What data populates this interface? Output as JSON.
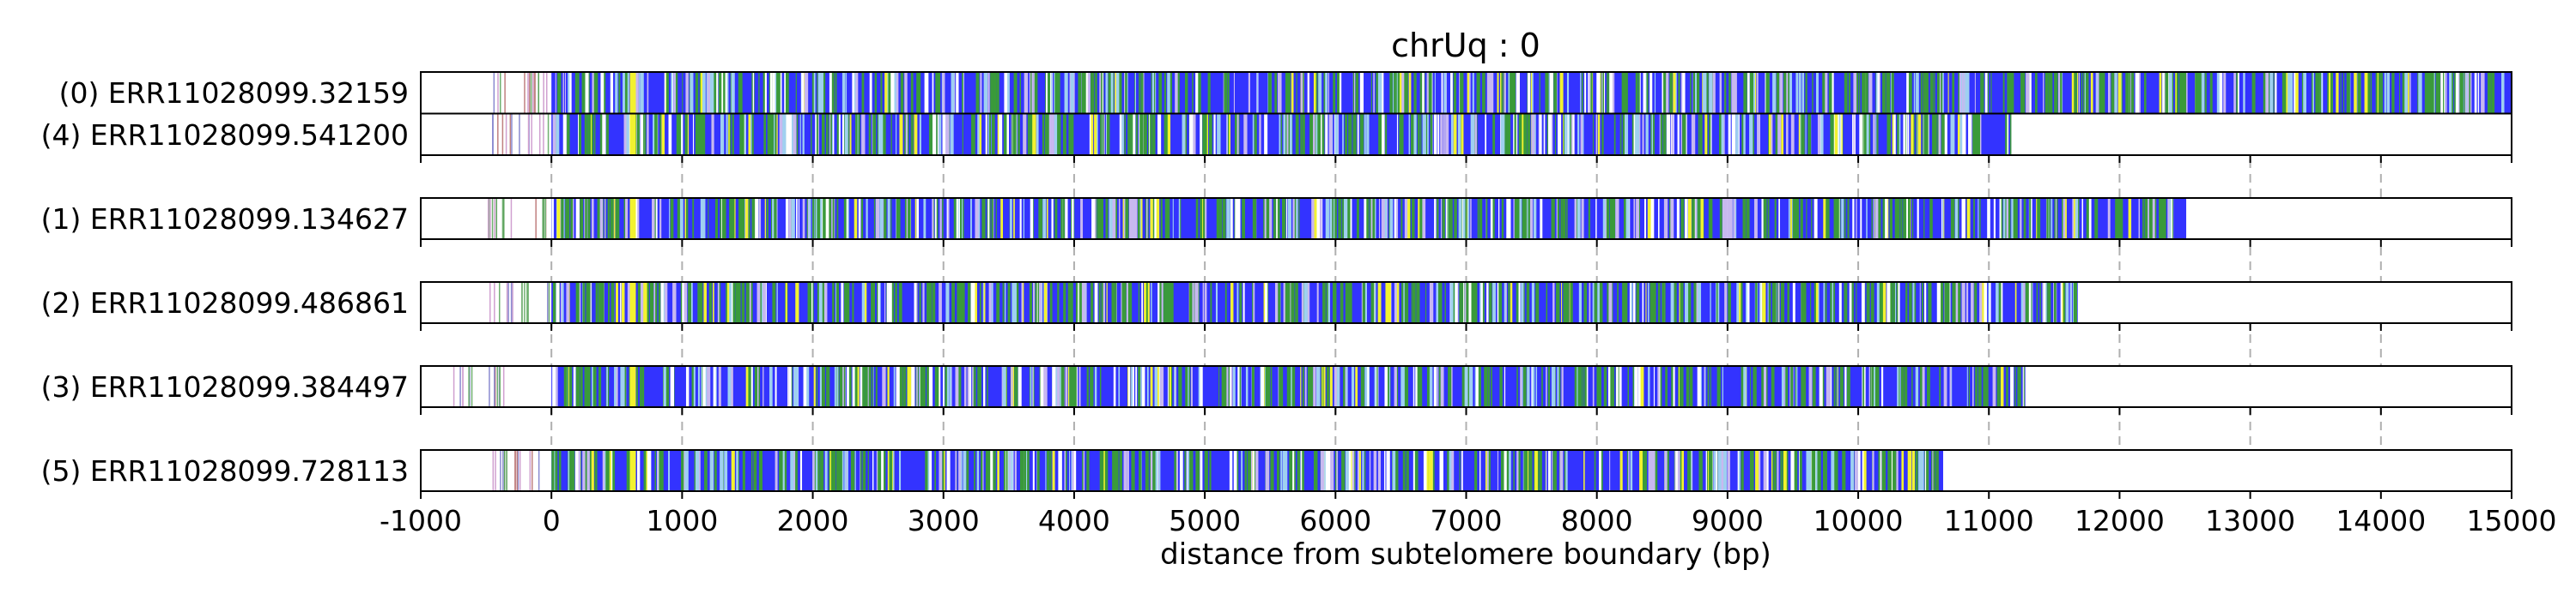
{
  "chart_data": {
    "type": "read-track",
    "title": "chrUq : 0",
    "xlabel": "distance from subtelomere boundary (bp)",
    "xlim": [
      -1000,
      15000
    ],
    "xticks": [
      -1000,
      0,
      1000,
      2000,
      3000,
      4000,
      5000,
      6000,
      7000,
      8000,
      9000,
      10000,
      11000,
      12000,
      13000,
      14000,
      15000
    ],
    "grid_x": [
      0,
      1000,
      2000,
      3000,
      4000,
      5000,
      6000,
      7000,
      8000,
      9000,
      10000,
      11000,
      12000,
      13000,
      14000
    ],
    "palette": {
      "repeat": "#3333ff",
      "variant_green": "#3a9a3a",
      "variant_yellow": "#f2f230",
      "variant_light": "#c8b8f0",
      "variant_white": "#ffffff",
      "variant_sky": "#9fd0f0",
      "subtelomere_tick": "#5aa05a"
    },
    "groups": [
      {
        "reads": [
          {
            "label": "(0) ERR11028099.32159",
            "start": -500,
            "end": 15000,
            "repeat_start": 0
          },
          {
            "label": "(4) ERR11028099.541200",
            "start": -500,
            "end": 11170,
            "repeat_start": 0
          }
        ]
      },
      {
        "reads": [
          {
            "label": "(1) ERR11028099.134627",
            "start": -500,
            "end": 12510,
            "repeat_start": 0
          }
        ]
      },
      {
        "reads": [
          {
            "label": "(2) ERR11028099.486861",
            "start": -500,
            "end": 11680,
            "repeat_start": 0
          }
        ]
      },
      {
        "reads": [
          {
            "label": "(3) ERR11028099.384497",
            "start": -800,
            "end": 11280,
            "repeat_start": 0
          }
        ]
      },
      {
        "reads": [
          {
            "label": "(5) ERR11028099.728113",
            "start": -500,
            "end": 10650,
            "repeat_start": 0
          }
        ]
      }
    ]
  }
}
